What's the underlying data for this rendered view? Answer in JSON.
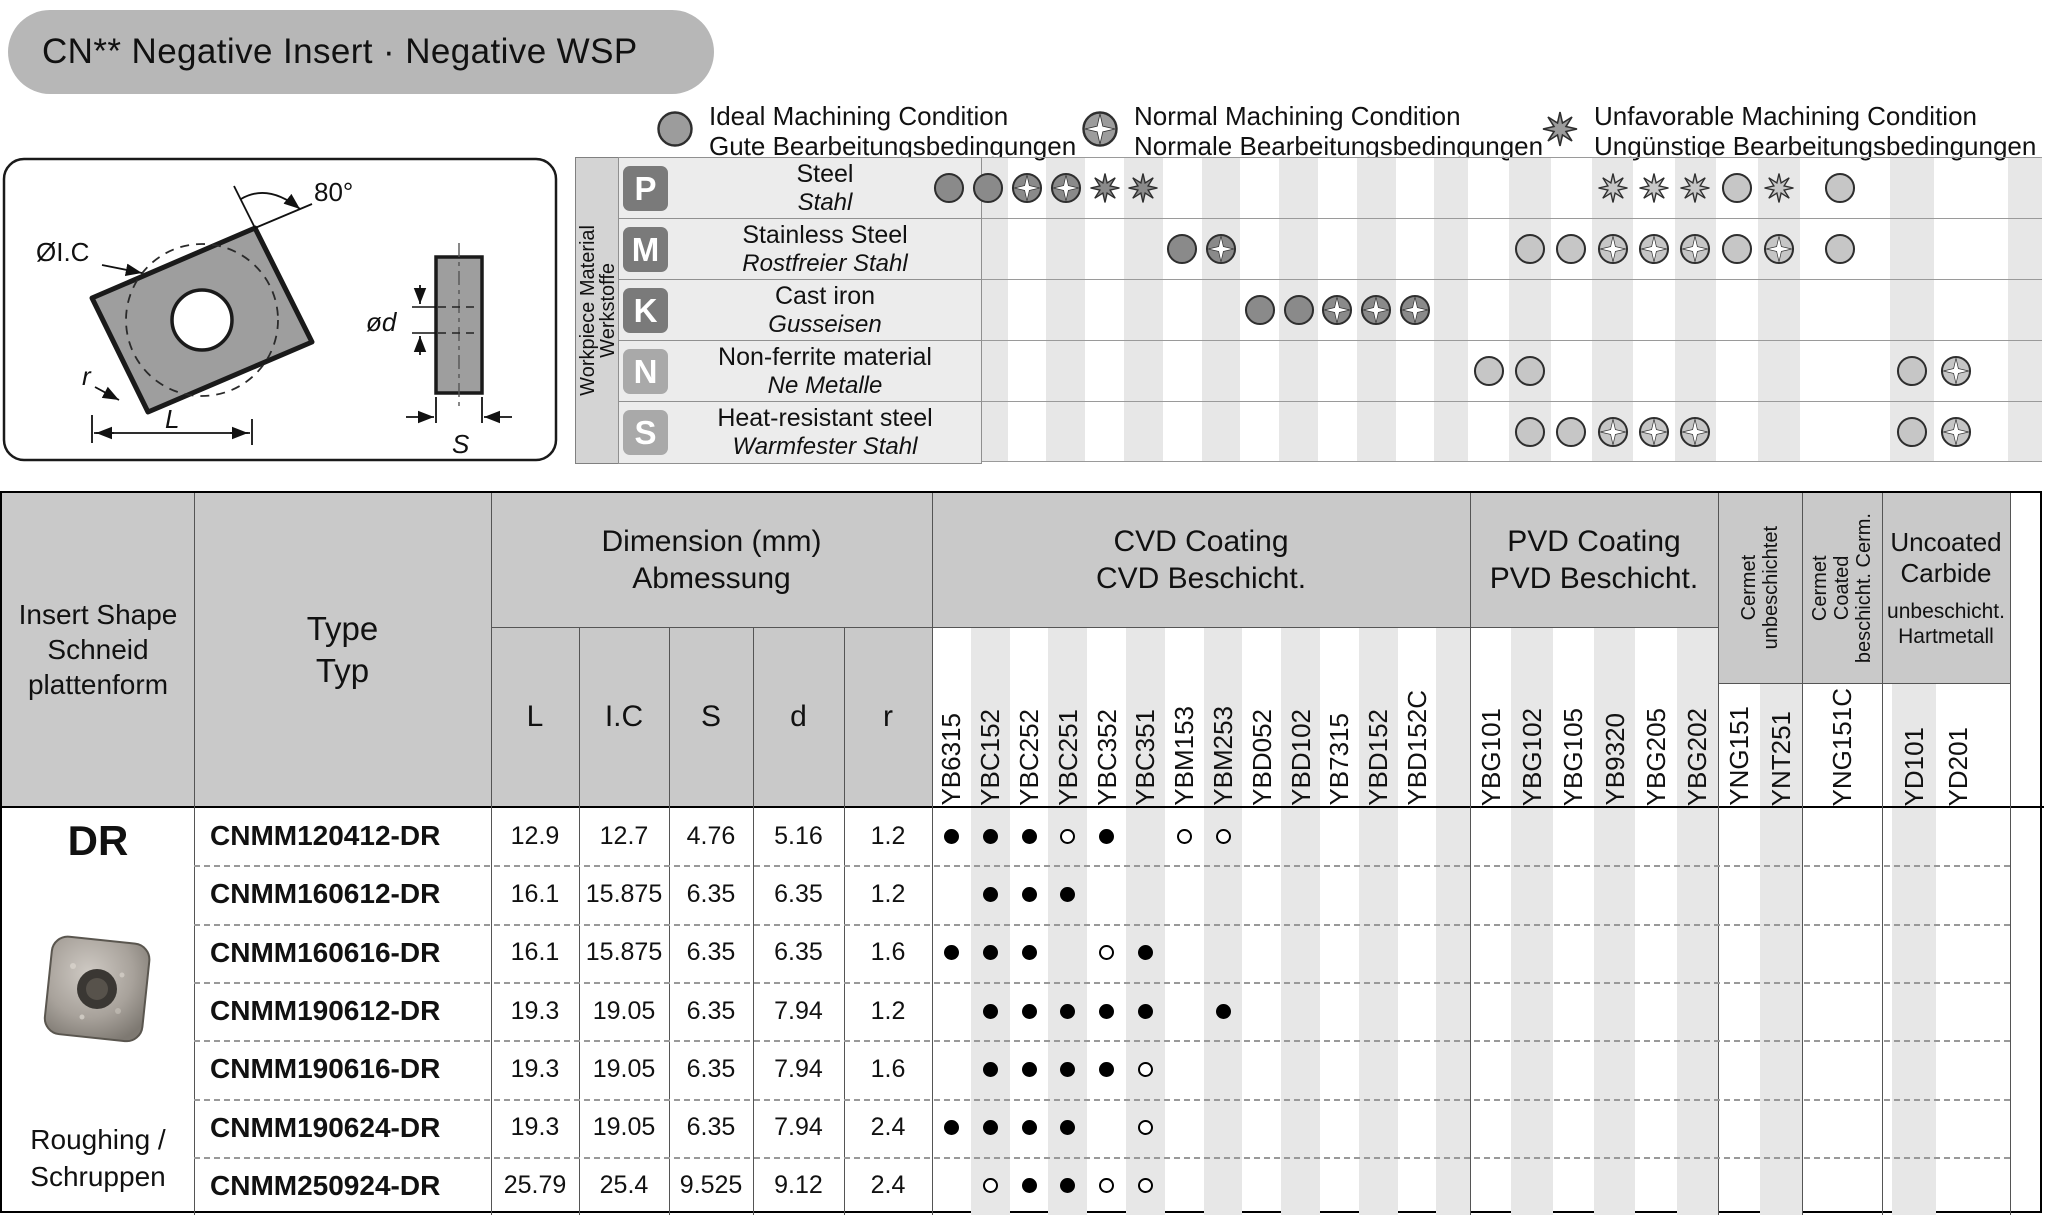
{
  "title": "CN** Negative Insert · Negative WSP",
  "legend": {
    "items": [
      {
        "type": "ideal",
        "en": "Ideal Machining Condition",
        "de": "Gute Bearbeitungsbedingungen"
      },
      {
        "type": "normal",
        "en": "Normal Machining Condition",
        "de": "Normale Bearbeitungsbedingungen"
      },
      {
        "type": "unfavorable",
        "en": "Unfavorable Machining Condition",
        "de": "Ungünstige Bearbeitungsbedingungen"
      }
    ]
  },
  "drawing": {
    "angle_label": "80°",
    "ic_label": "ØI.C",
    "radius_label": "r",
    "length_label": "L",
    "hole_label": "ød",
    "thickness_label": "S"
  },
  "workpiece": {
    "sidebar_lines": [
      "Workpiece Material",
      "Werkstoffe"
    ],
    "rows": [
      {
        "code": "P",
        "en": "Steel",
        "de": "Stahl",
        "badge": "dark",
        "symbols": [
          {
            "col": 0,
            "type": "ideal"
          },
          {
            "col": 1,
            "type": "ideal"
          },
          {
            "col": 2,
            "type": "normal"
          },
          {
            "col": 3,
            "type": "normal"
          },
          {
            "col": 4,
            "type": "unfavorable"
          },
          {
            "col": 5,
            "type": "unfavorable"
          },
          {
            "col": 16,
            "type": "unfavorable"
          },
          {
            "col": 17,
            "type": "unfavorable"
          },
          {
            "col": 18,
            "type": "unfavorable"
          },
          {
            "col": 19,
            "type": "ideal"
          },
          {
            "col": 20,
            "type": "unfavorable"
          },
          {
            "col": 21,
            "type": "ideal"
          }
        ]
      },
      {
        "code": "M",
        "en": "Stainless Steel",
        "de": "Rostfreier Stahl",
        "badge": "dark",
        "symbols": [
          {
            "col": 6,
            "type": "ideal"
          },
          {
            "col": 7,
            "type": "normal"
          },
          {
            "col": 14,
            "type": "ideal"
          },
          {
            "col": 15,
            "type": "ideal"
          },
          {
            "col": 16,
            "type": "normal"
          },
          {
            "col": 17,
            "type": "normal"
          },
          {
            "col": 18,
            "type": "normal"
          },
          {
            "col": 19,
            "type": "ideal"
          },
          {
            "col": 20,
            "type": "normal"
          },
          {
            "col": 21,
            "type": "ideal"
          }
        ]
      },
      {
        "code": "K",
        "en": "Cast iron",
        "de": "Gusseisen",
        "badge": "dark",
        "symbols": [
          {
            "col": 8,
            "type": "ideal"
          },
          {
            "col": 9,
            "type": "ideal"
          },
          {
            "col": 10,
            "type": "normal"
          },
          {
            "col": 11,
            "type": "normal"
          },
          {
            "col": 12,
            "type": "normal"
          }
        ]
      },
      {
        "code": "N",
        "en": "Non-ferrite material",
        "de": "Ne Metalle",
        "badge": "light",
        "symbols": [
          {
            "col": 13,
            "type": "ideal"
          },
          {
            "col": 14,
            "type": "ideal"
          },
          {
            "col": 22,
            "type": "ideal"
          },
          {
            "col": 23,
            "type": "normal"
          }
        ]
      },
      {
        "code": "S",
        "en": "Heat-resistant steel",
        "de": "Warmfester Stahl",
        "badge": "light",
        "symbols": [
          {
            "col": 14,
            "type": "ideal"
          },
          {
            "col": 15,
            "type": "ideal"
          },
          {
            "col": 16,
            "type": "normal"
          },
          {
            "col": 17,
            "type": "normal"
          },
          {
            "col": 18,
            "type": "normal"
          },
          {
            "col": 22,
            "type": "ideal"
          },
          {
            "col": 23,
            "type": "normal"
          }
        ]
      }
    ]
  },
  "table": {
    "header": {
      "shape": [
        "Insert Shape",
        "Schneid",
        "plattenform"
      ],
      "type": [
        "Type",
        "Typ"
      ],
      "dimension": [
        "Dimension (mm)",
        "Abmessung"
      ],
      "dim_cols": [
        "L",
        "I.C",
        "S",
        "d",
        "r"
      ],
      "groups": [
        {
          "id": "cvd",
          "lines": [
            "CVD Coating",
            "CVD Beschicht."
          ]
        },
        {
          "id": "pvd",
          "lines": [
            "PVD Coating",
            "PVD Beschicht."
          ]
        },
        {
          "id": "cermet_uncoated",
          "lines": [
            "Cermet",
            "unbeschichtet"
          ]
        },
        {
          "id": "cermet_coated",
          "lines": [
            "Cermet",
            "Coated",
            "beschicht. Cerm."
          ]
        },
        {
          "id": "uncoated_carbide",
          "lines": [
            "Uncoated",
            "Carbide"
          ],
          "sub": [
            "unbeschicht.",
            "Hartmetall"
          ]
        }
      ],
      "grade_cols": [
        "YB6315",
        "YBC152",
        "YBC252",
        "YBC251",
        "YBC352",
        "YBC351",
        "YBM153",
        "YBM253",
        "YBD052",
        "YBD102",
        "YB7315",
        "YBD152",
        "YBD152C",
        "YBG101",
        "YBG102",
        "YBG105",
        "YB9320",
        "YBG205",
        "YBG202",
        "YNG151",
        "YNT251",
        "YNG151C",
        "YD101",
        "YD201"
      ]
    },
    "shape_cell": {
      "code": "DR",
      "usage": [
        "Roughing /",
        "Schruppen"
      ]
    },
    "rows": [
      {
        "type": "CNMM120412-DR",
        "L": "12.9",
        "IC": "12.7",
        "S": "4.76",
        "d": "5.16",
        "r": "1.2",
        "dots": [
          {
            "col": 0,
            "v": "filled"
          },
          {
            "col": 1,
            "v": "filled"
          },
          {
            "col": 2,
            "v": "filled"
          },
          {
            "col": 3,
            "v": "open"
          },
          {
            "col": 4,
            "v": "filled"
          },
          {
            "col": 6,
            "v": "open"
          },
          {
            "col": 7,
            "v": "open"
          }
        ]
      },
      {
        "type": "CNMM160612-DR",
        "L": "16.1",
        "IC": "15.875",
        "S": "6.35",
        "d": "6.35",
        "r": "1.2",
        "dots": [
          {
            "col": 1,
            "v": "filled"
          },
          {
            "col": 2,
            "v": "filled"
          },
          {
            "col": 3,
            "v": "filled"
          }
        ]
      },
      {
        "type": "CNMM160616-DR",
        "L": "16.1",
        "IC": "15.875",
        "S": "6.35",
        "d": "6.35",
        "r": "1.6",
        "dots": [
          {
            "col": 0,
            "v": "filled"
          },
          {
            "col": 1,
            "v": "filled"
          },
          {
            "col": 2,
            "v": "filled"
          },
          {
            "col": 4,
            "v": "open"
          },
          {
            "col": 5,
            "v": "filled"
          }
        ]
      },
      {
        "type": "CNMM190612-DR",
        "L": "19.3",
        "IC": "19.05",
        "S": "6.35",
        "d": "7.94",
        "r": "1.2",
        "dots": [
          {
            "col": 1,
            "v": "filled"
          },
          {
            "col": 2,
            "v": "filled"
          },
          {
            "col": 3,
            "v": "filled"
          },
          {
            "col": 4,
            "v": "filled"
          },
          {
            "col": 5,
            "v": "filled"
          },
          {
            "col": 7,
            "v": "filled"
          }
        ]
      },
      {
        "type": "CNMM190616-DR",
        "L": "19.3",
        "IC": "19.05",
        "S": "6.35",
        "d": "7.94",
        "r": "1.6",
        "dots": [
          {
            "col": 1,
            "v": "filled"
          },
          {
            "col": 2,
            "v": "filled"
          },
          {
            "col": 3,
            "v": "filled"
          },
          {
            "col": 4,
            "v": "filled"
          },
          {
            "col": 5,
            "v": "open"
          }
        ]
      },
      {
        "type": "CNMM190624-DR",
        "L": "19.3",
        "IC": "19.05",
        "S": "6.35",
        "d": "7.94",
        "r": "2.4",
        "dots": [
          {
            "col": 0,
            "v": "filled"
          },
          {
            "col": 1,
            "v": "filled"
          },
          {
            "col": 2,
            "v": "filled"
          },
          {
            "col": 3,
            "v": "filled"
          },
          {
            "col": 5,
            "v": "open"
          }
        ]
      },
      {
        "type": "CNMM250924-DR",
        "L": "25.79",
        "IC": "25.4",
        "S": "9.525",
        "d": "9.12",
        "r": "2.4",
        "dots": [
          {
            "col": 1,
            "v": "open"
          },
          {
            "col": 2,
            "v": "filled"
          },
          {
            "col": 3,
            "v": "filled"
          },
          {
            "col": 4,
            "v": "open"
          },
          {
            "col": 5,
            "v": "open"
          }
        ]
      }
    ]
  },
  "colors": {
    "title_bg": "#b7b7b7",
    "header_bg": "#c9c9c9",
    "stripe": "#e7e7e7",
    "label_cell_bg": "#ececec",
    "sidebar_bg": "#d4d4d4",
    "badge_dark": "#7a7a7a",
    "badge_light": "#a9a9a9",
    "symbol_dark": "#8a8a8a",
    "symbol_light": "#c6c6c6",
    "legend_symbol": "#9c9c9c",
    "dot": "#000000"
  }
}
